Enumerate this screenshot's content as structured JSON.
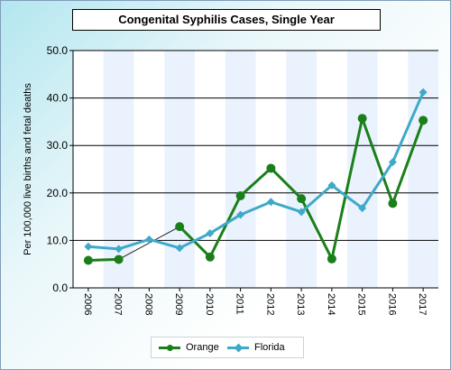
{
  "chart_data": {
    "type": "line",
    "title": "Congenital Syphilis Cases, Single Year",
    "xlabel": "",
    "ylabel": "Per 100,000 live births and fetal deaths",
    "ylim": [
      0,
      50
    ],
    "yticks": [
      "0.0",
      "10.0",
      "20.0",
      "30.0",
      "40.0",
      "50.0"
    ],
    "categories": [
      "2006",
      "2007",
      "2008",
      "2009",
      "2010",
      "2011",
      "2012",
      "2013",
      "2014",
      "2015",
      "2016",
      "2017"
    ],
    "series": [
      {
        "name": "Orange",
        "color": "#1a7f1a",
        "marker": "circle",
        "values": [
          5.8,
          6.0,
          null,
          12.9,
          6.5,
          19.4,
          25.2,
          18.8,
          6.1,
          35.7,
          17.8,
          35.3
        ]
      },
      {
        "name": "Florida",
        "color": "#3fa9c9",
        "marker": "diamond",
        "values": [
          8.7,
          8.2,
          10.2,
          8.4,
          11.5,
          15.4,
          18.1,
          16.0,
          21.6,
          16.8,
          26.5,
          41.2
        ]
      }
    ],
    "grid": true,
    "legend_position": "bottom"
  }
}
